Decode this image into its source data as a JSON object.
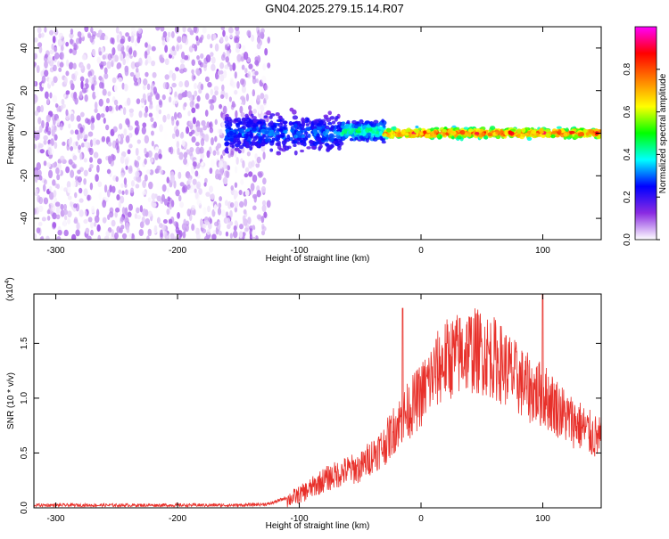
{
  "figure": {
    "title": "GN04.2025.279.15.14.R07"
  },
  "chart_data": [
    {
      "type": "heatmap",
      "xlabel": "Height of straight line (km)",
      "ylabel": "Frequency (Hz)",
      "xlim": [
        -318,
        148
      ],
      "ylim": [
        -50,
        50
      ],
      "xticks": [
        -300,
        -200,
        -100,
        0,
        100
      ],
      "xtick_labels": [
        "-300",
        "-200",
        "-100",
        "0",
        "100"
      ],
      "yticks": [
        -40,
        -20,
        0,
        20,
        40
      ],
      "ytick_labels": [
        "-40",
        "-20",
        "0",
        "20",
        "40"
      ],
      "colorbar": {
        "label": "Normalized spectral amplitude",
        "range": [
          0.0,
          1.0
        ],
        "ticks": [
          0.0,
          0.2,
          0.4,
          0.6,
          0.8
        ],
        "tick_labels": [
          "0.0",
          "0.2",
          "0.4",
          "0.6",
          "0.8"
        ],
        "colormap": [
          "#ffffff",
          "#8a2be2",
          "#0000ff",
          "#00ffff",
          "#00ff00",
          "#ffff00",
          "#ff8000",
          "#ff0000",
          "#ff00ff"
        ]
      },
      "regions": [
        {
          "x_range": [
            -318,
            -125
          ],
          "freq_range": [
            -50,
            50
          ],
          "amplitude": 0.1,
          "description_level": "broadband noise"
        },
        {
          "x_range": [
            -160,
            -65
          ],
          "freq_range": [
            -12,
            12
          ],
          "amplitude": 0.35
        },
        {
          "x_range": [
            -65,
            -30
          ],
          "freq_range": [
            -5,
            7
          ],
          "amplitude": 0.5
        },
        {
          "x_range": [
            -30,
            148
          ],
          "freq_range": [
            -3,
            3
          ],
          "amplitude": 0.95
        }
      ],
      "grid": false
    },
    {
      "type": "line",
      "xlabel": "Height of straight line (km)",
      "ylabel": "SNR (10 * v/v)",
      "y_scale_label": "(x10",
      "y_scale_exponent": "4",
      "y_scale_suffix": ")",
      "xlim": [
        -318,
        148
      ],
      "ylim": [
        0,
        1.95
      ],
      "xticks": [
        -300,
        -200,
        -100,
        0,
        100
      ],
      "xtick_labels": [
        "-300",
        "-200",
        "-100",
        "0",
        "100"
      ],
      "yticks": [
        0.0,
        0.5,
        1.0,
        1.5
      ],
      "ytick_labels": [
        "0.0",
        "0.5",
        "1.0",
        "1.5"
      ],
      "series": [
        {
          "color": "#e8302a",
          "x": [
            -318,
            -250,
            -200,
            -150,
            -125,
            -110,
            -100,
            -90,
            -80,
            -70,
            -60,
            -50,
            -40,
            -30,
            -20,
            -10,
            0,
            10,
            20,
            30,
            40,
            50,
            60,
            70,
            80,
            90,
            100,
            110,
            120,
            130,
            140,
            148
          ],
          "y": [
            0.03,
            0.03,
            0.03,
            0.03,
            0.04,
            0.1,
            0.15,
            0.22,
            0.3,
            0.35,
            0.4,
            0.42,
            0.55,
            0.65,
            0.85,
            1.0,
            1.15,
            1.35,
            1.5,
            1.55,
            1.6,
            1.58,
            1.52,
            1.42,
            1.3,
            1.2,
            1.15,
            1.05,
            0.92,
            0.85,
            0.75,
            0.7
          ]
        }
      ],
      "peaks": [
        {
          "x": -15,
          "y": 1.82
        },
        {
          "x": 100,
          "y": 1.95
        }
      ],
      "grid": false
    }
  ]
}
